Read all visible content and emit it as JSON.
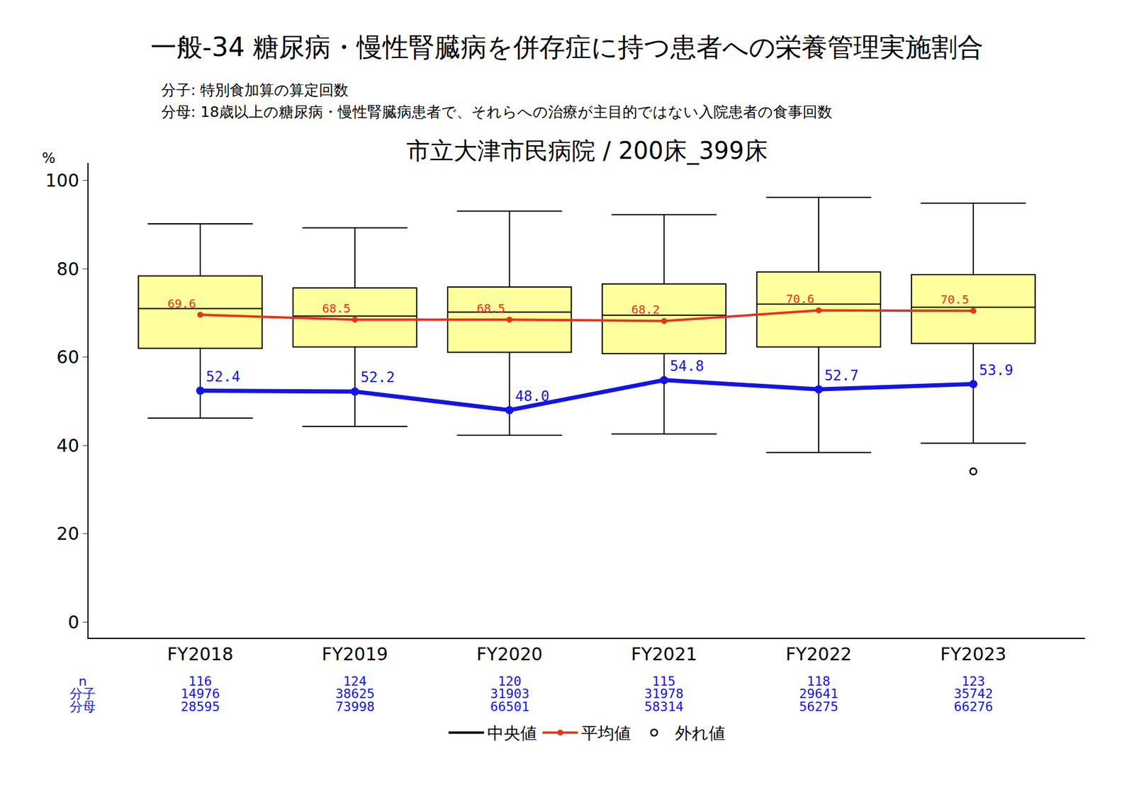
{
  "chart_data": {
    "type": "box",
    "title": "一般-34 糖尿病・慢性腎臓病を併存症に持つ患者への栄養管理実施割合",
    "notes": [
      "分子: 特別食加算の算定回数",
      "分母: 18歳以上の糖尿病・慢性腎臓病患者で、それらへの治療が主目的ではない入院患者の食事回数"
    ],
    "subtitle": "市立大津市民病院 / 200床_399床",
    "y_label": "%",
    "categories": [
      "FY2018",
      "FY2019",
      "FY2020",
      "FY2021",
      "FY2022",
      "FY2023"
    ],
    "box": {
      "color": "#ffff9e",
      "median_name": "中央値",
      "lowerfence": [
        46.2,
        44.3,
        42.3,
        42.6,
        38.4,
        40.5
      ],
      "q1": [
        62.0,
        62.3,
        61.1,
        60.8,
        62.3,
        63.1
      ],
      "median": [
        71.0,
        69.3,
        70.2,
        69.5,
        72.0,
        71.3
      ],
      "q3": [
        78.4,
        75.7,
        75.9,
        76.6,
        79.3,
        78.7
      ],
      "upperfence": [
        90.2,
        89.3,
        93.1,
        92.3,
        96.2,
        94.9
      ]
    },
    "series": [
      {
        "name": "平均値",
        "color": "#e8321c",
        "marker": "circle",
        "data_labels": true,
        "values": [
          69.6,
          68.5,
          68.5,
          68.2,
          70.6,
          70.5
        ]
      },
      {
        "color": "#1414e6",
        "marker": "circle",
        "data_labels": true,
        "values": [
          52.4,
          52.2,
          48.0,
          54.8,
          52.7,
          53.9
        ],
        "value_labels": [
          "52.4",
          "52.2",
          "48.0",
          "54.8",
          "52.7",
          "53.9"
        ]
      }
    ],
    "outliers": {
      "name": "外れ値",
      "x": [
        "FY2023"
      ],
      "values": [
        34.1
      ]
    },
    "table": {
      "row_labels": [
        "n",
        "分子",
        "分母"
      ],
      "color": "#1414e6",
      "rows": [
        [
          116,
          124,
          120,
          115,
          118,
          123
        ],
        [
          14976,
          38625,
          31903,
          31978,
          29641,
          35742
        ],
        [
          28595,
          73998,
          66501,
          58314,
          56275,
          66276
        ]
      ]
    },
    "ylim": [
      -3.6,
      104
    ],
    "yticks": [
      0,
      20,
      40,
      60,
      80,
      100
    ],
    "grid": false,
    "legend": "bottom"
  }
}
